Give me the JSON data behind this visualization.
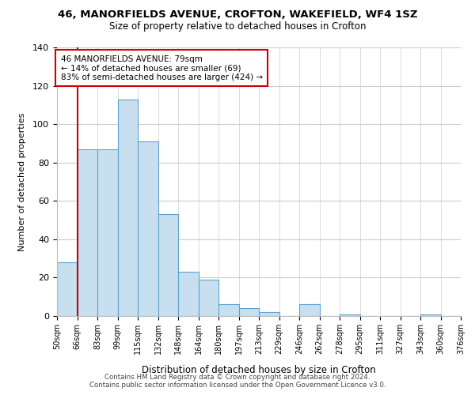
{
  "title": "46, MANORFIELDS AVENUE, CROFTON, WAKEFIELD, WF4 1SZ",
  "subtitle": "Size of property relative to detached houses in Crofton",
  "xlabel": "Distribution of detached houses by size in Crofton",
  "ylabel": "Number of detached properties",
  "bin_labels": [
    "50sqm",
    "66sqm",
    "83sqm",
    "99sqm",
    "115sqm",
    "132sqm",
    "148sqm",
    "164sqm",
    "180sqm",
    "197sqm",
    "213sqm",
    "229sqm",
    "246sqm",
    "262sqm",
    "278sqm",
    "295sqm",
    "311sqm",
    "327sqm",
    "343sqm",
    "360sqm",
    "376sqm"
  ],
  "bar_heights": [
    28,
    87,
    87,
    113,
    91,
    53,
    23,
    19,
    6,
    4,
    2,
    0,
    6,
    0,
    1,
    0,
    0,
    0,
    1,
    0
  ],
  "bar_color": "#c8dff0",
  "bar_edge_color": "#5ba3d0",
  "vline_x": 1,
  "vline_color": "#cc0000",
  "ylim": [
    0,
    140
  ],
  "yticks": [
    0,
    20,
    40,
    60,
    80,
    100,
    120,
    140
  ],
  "annotation_text": "46 MANORFIELDS AVENUE: 79sqm\n← 14% of detached houses are smaller (69)\n83% of semi-detached houses are larger (424) →",
  "annotation_box_color": "#ffffff",
  "annotation_box_edge": "#cc0000",
  "footer_line1": "Contains HM Land Registry data © Crown copyright and database right 2024.",
  "footer_line2": "Contains public sector information licensed under the Open Government Licence v3.0.",
  "background_color": "#ffffff",
  "grid_color": "#cccccc"
}
